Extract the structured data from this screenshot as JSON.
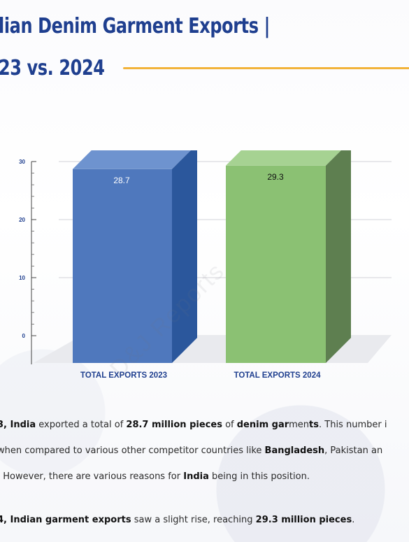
{
  "title": {
    "line1": "lian Denim Garment Exports |",
    "line2": "23 vs. 2024"
  },
  "watermark": "D&J Reports",
  "colors": {
    "title": "#1f3f8f",
    "accent_rule": "#f2b33a",
    "bar_2023": "#4f78bd",
    "bar_2024": "#8bc173"
  },
  "chart_data": {
    "type": "bar",
    "categories": [
      "TOTAL EXPORTS 2023",
      "TOTAL EXPORTS 2024"
    ],
    "values": [
      28.7,
      29.3
    ],
    "data_labels": [
      "28.7",
      "29.3"
    ],
    "yticks": [
      "0",
      "10",
      "20",
      "30"
    ],
    "ylim": [
      0,
      30
    ],
    "grid": true,
    "style": "3d"
  },
  "paragraph1": {
    "l1": [
      "3, ",
      "India",
      " exported a total of ",
      "28.7 million pieces",
      " of ",
      "denim gar",
      "men",
      "ts",
      ". This number i"
    ],
    "l2": [
      "when compared to various other competitor countries like ",
      "Bangladesh",
      ", Pakistan an"
    ],
    "l3": [
      ". However, there are various reasons for ",
      "India",
      " being in this position."
    ]
  },
  "paragraph2": {
    "l1": [
      "4, ",
      "Indian garment exports",
      " saw a slight rise, reaching ",
      "29.3 million pieces",
      "."
    ]
  }
}
